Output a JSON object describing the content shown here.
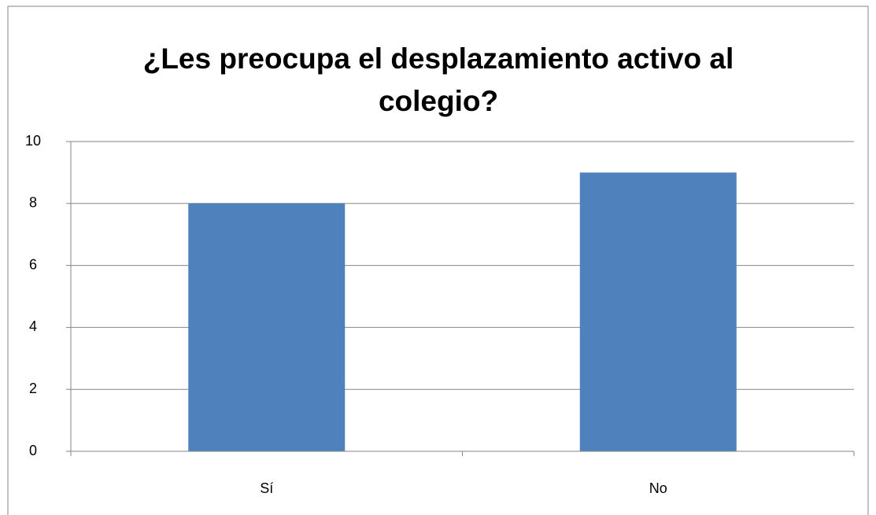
{
  "chart_data": {
    "type": "bar",
    "title": "¿Les preocupa el desplazamiento activo al colegio?",
    "categories": [
      "Sí",
      "No"
    ],
    "values": [
      8,
      9
    ],
    "color": "#4f81bd",
    "ylim": [
      0,
      10
    ],
    "yticks": [
      0,
      2,
      4,
      6,
      8,
      10
    ],
    "grid": true
  }
}
